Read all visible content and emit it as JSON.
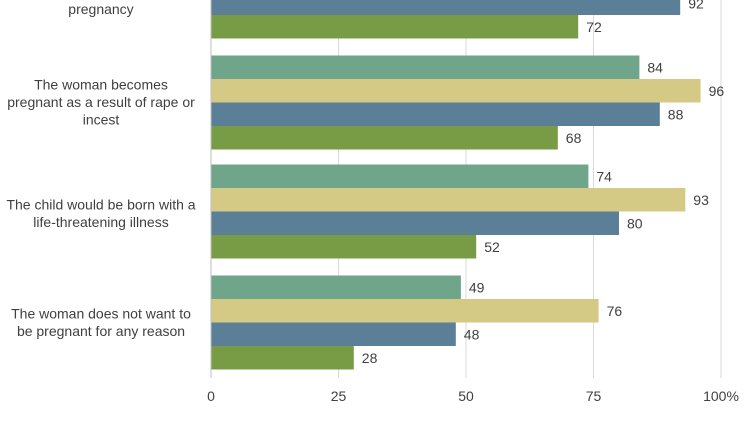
{
  "chart_data": {
    "type": "bar",
    "orientation": "horizontal",
    "categories": [
      "pregnancy",
      "The woman becomes pregnant as a result of rape or incest",
      "The child would be born with a life-threatening illness",
      "The woman does not want to be pregnant for any reason"
    ],
    "category_lines": [
      [
        "pregnancy"
      ],
      [
        "The woman becomes",
        "pregnant as a result of rape or",
        "incest"
      ],
      [
        "The child would be born with a",
        "life-threatening illness"
      ],
      [
        "The woman does not want to",
        "be pregnant for any reason"
      ]
    ],
    "series": [
      {
        "color": "#6fa58a",
        "values": [
          null,
          84,
          74,
          49
        ]
      },
      {
        "color": "#d4c985",
        "values": [
          null,
          96,
          93,
          76
        ]
      },
      {
        "color": "#5a7f97",
        "values": [
          92,
          88,
          80,
          48
        ]
      },
      {
        "color": "#789c45",
        "values": [
          72,
          68,
          52,
          28
        ]
      }
    ],
    "xlim": [
      0,
      100
    ],
    "xticks": [
      0,
      25,
      50,
      75,
      100
    ],
    "xtick_labels": [
      "0",
      "25",
      "50",
      "75",
      "100%"
    ],
    "grid": true,
    "title": "",
    "xlabel": "",
    "ylabel": ""
  }
}
